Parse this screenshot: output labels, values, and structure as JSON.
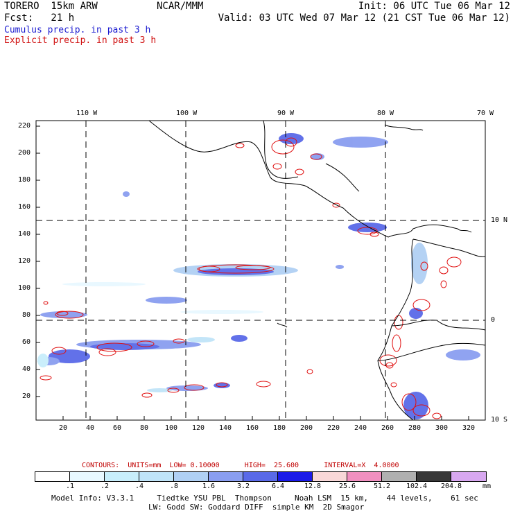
{
  "header": {
    "model": "TORERO  15km ARW",
    "org": "NCAR/MMM",
    "init": "Init: 06 UTC Tue 06 Mar 12",
    "fcst": "Fcst:   21 h",
    "valid": "Valid: 03 UTC Wed 07 Mar 12 (21 CST Tue 06 Mar 12)",
    "cumulus": "Cumulus precip. in past 3 h",
    "explicit": "Explicit precip. in past 3 h"
  },
  "axes": {
    "top_lon_labels": [
      "110 W",
      "100 W",
      "90 W",
      "80 W",
      "70 W"
    ],
    "right_lat_labels": [
      "10 N",
      "0",
      "10 S"
    ],
    "left_ticks": [
      "220",
      "200",
      "180",
      "160",
      "140",
      "120",
      "100",
      "80",
      "60",
      "40",
      "20"
    ],
    "bottom_ticks": [
      "20",
      "40",
      "60",
      "80",
      "100",
      "120",
      "140",
      "160",
      "180",
      "200",
      "220",
      "240",
      "260",
      "280",
      "300",
      "320"
    ]
  },
  "legend": {
    "contour_text": "CONTOURS:  UNITS=mm  LOW= 0.10000      HIGH=  25.600      INTERVAL=X  4.0000",
    "colors": [
      "#ffffff",
      "#e8f8ff",
      "#c8eefb",
      "#c0e4f8",
      "#b0d0f4",
      "#8a9ef0",
      "#5a6ae8",
      "#1a1ae8",
      "#f8d8d8",
      "#f090c0",
      "#b0b0b0",
      "#383838",
      "#d8a8f0"
    ],
    "labels": [
      ".1",
      ".2",
      ".4",
      ".8",
      "1.6",
      "3.2",
      "6.4",
      "12.8",
      "25.6",
      "51.2",
      "102.4",
      "204.8"
    ],
    "unit": "mm"
  },
  "footer": {
    "line1": "Model Info: V3.3.1     Tiedtke YSU PBL  Thompson     Noah LSM  15 km,    44 levels,    61 sec",
    "line2": "LW: Godd SW: Goddard DIFF  simple KM  2D Smagor"
  }
}
